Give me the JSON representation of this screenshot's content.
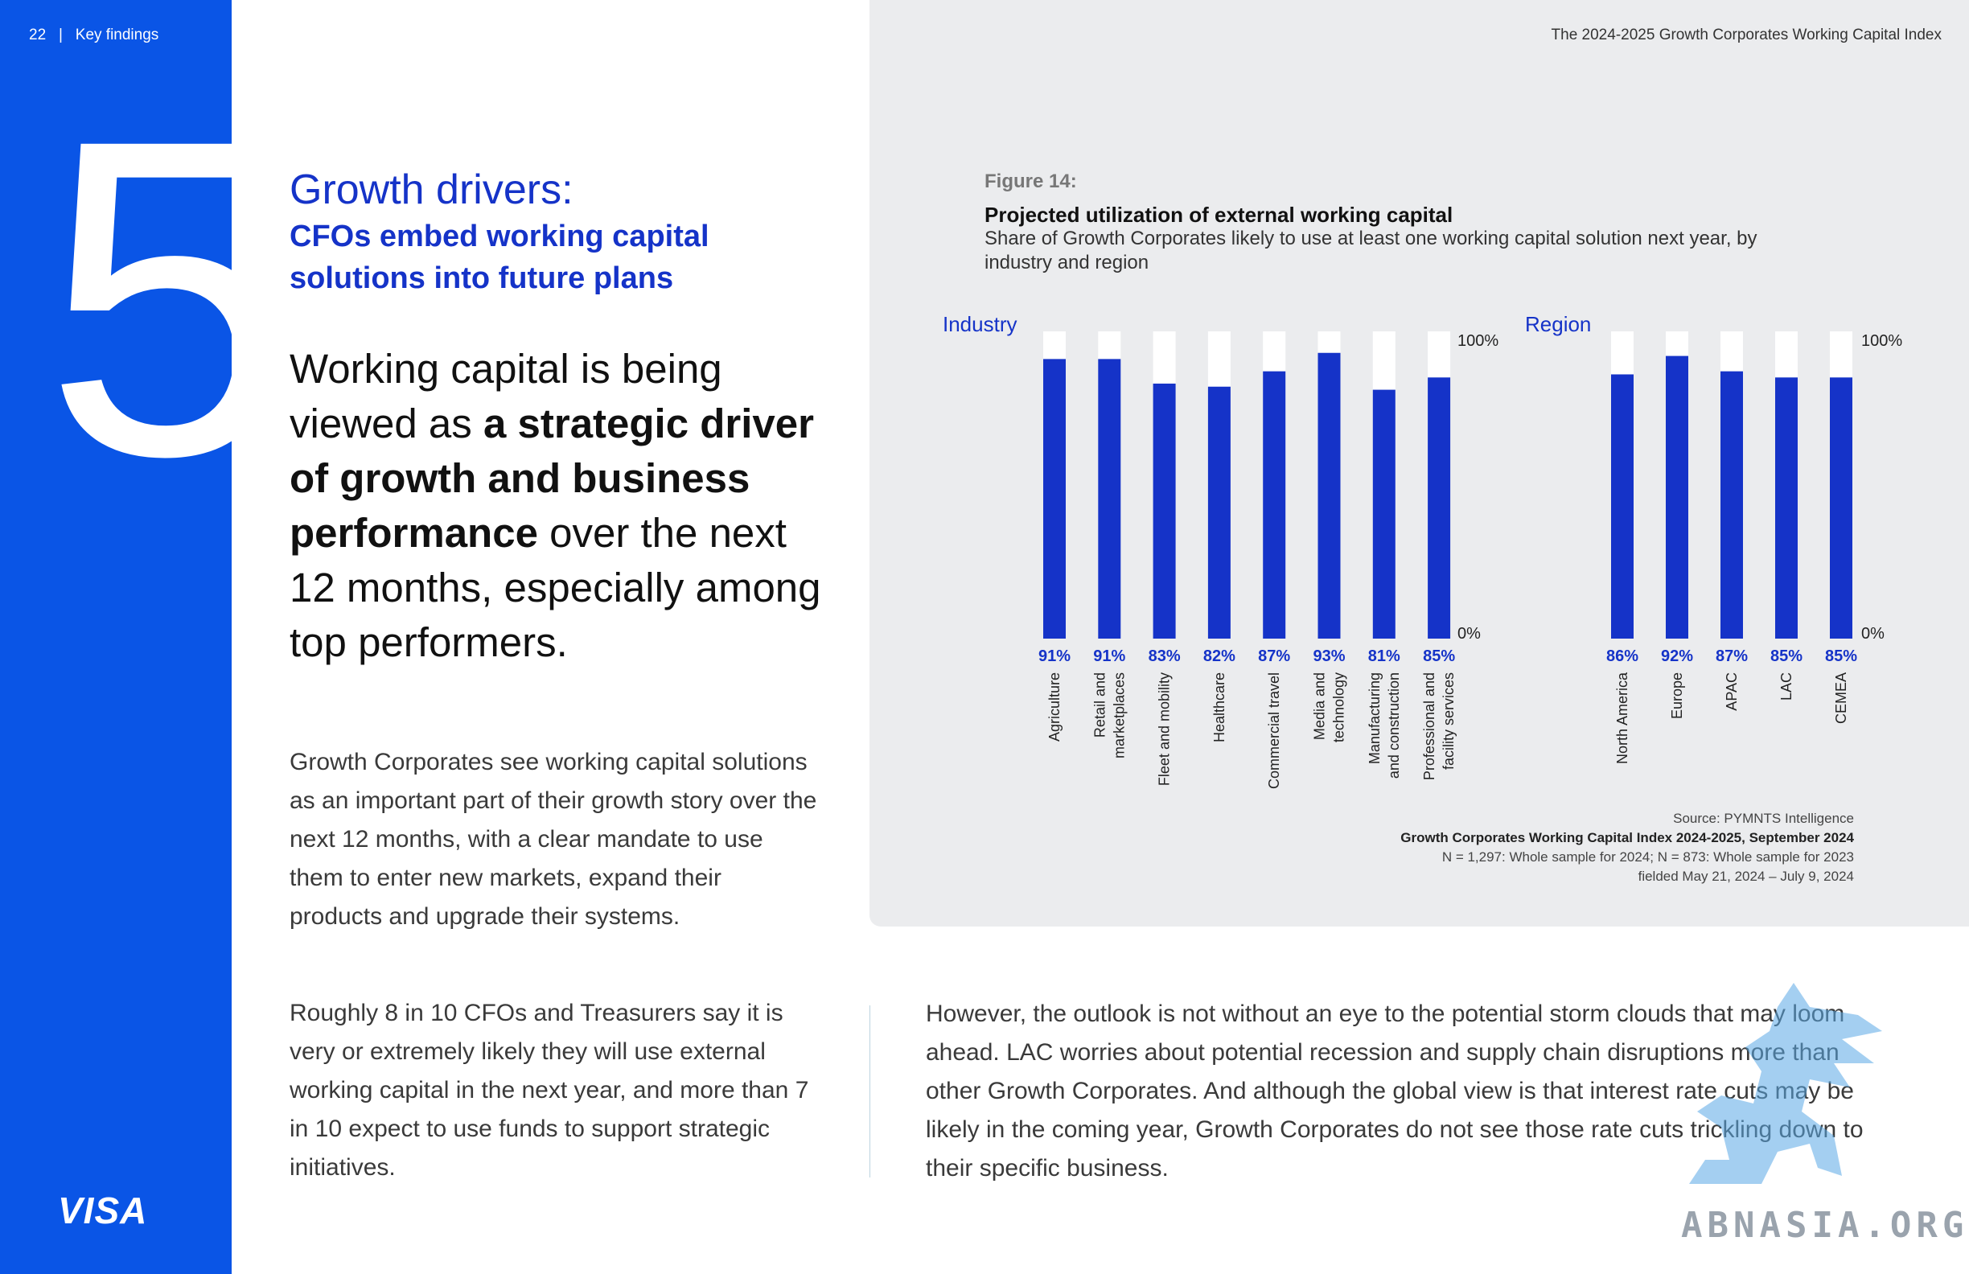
{
  "header": {
    "page_number": "22",
    "separator": "|",
    "section": "Key findings",
    "report_title": "The 2024-2025 Growth Corporates Working Capital Index"
  },
  "sidebar": {
    "big_number": "5",
    "logo": "VISA"
  },
  "finding": {
    "title_line1": "Growth drivers:",
    "title_line2": "CFOs embed working capital solutions into future plans",
    "lead_part1": "Working capital is being viewed as ",
    "lead_bold": "a strategic driver of growth and business performance",
    "lead_part2": " over the next 12 months, especially among top performers."
  },
  "body": {
    "para1": "Growth Corporates see working capital solutions as an important part of their growth story over the next 12 months, with a clear mandate to use them to enter new markets, expand their products and upgrade their systems.",
    "para2": "Roughly 8 in 10 CFOs and Treasurers say it is very or extremely likely they will use external working capital in the next year, and more than 7 in 10 expect to use funds to support strategic initiatives.",
    "para3": "However, the outlook is not without an eye to the potential storm clouds that may loom ahead. LAC worries about potential recession and supply chain disruptions more than other Growth Corporates. And although the global view is that interest rate cuts may be likely in the coming year, Growth Corporates do not see those rate cuts trickling down to their specific business."
  },
  "figure": {
    "label": "Figure 14:",
    "title": "Projected utilization of external working capital",
    "subtitle": "Share of Growth Corporates likely to use at least one working capital solution next year, by industry and region"
  },
  "chart_data": [
    {
      "type": "bar",
      "title": "Industry",
      "categories": [
        "Agriculture",
        "Retail and marketplaces",
        "Fleet and mobility",
        "Healthcare",
        "Commercial travel",
        "Media and technology",
        "Manufacturing and construction",
        "Professional and facility services"
      ],
      "category_lines": [
        [
          "Agriculture"
        ],
        [
          "Retail and",
          "marketplaces"
        ],
        [
          "Fleet and mobility"
        ],
        [
          "Healthcare"
        ],
        [
          "Commercial travel"
        ],
        [
          "Media and",
          "technology"
        ],
        [
          "Manufacturing",
          "and construction"
        ],
        [
          "Professional and",
          "facility services"
        ]
      ],
      "values": [
        91,
        91,
        83,
        82,
        87,
        93,
        81,
        85
      ],
      "data_labels": [
        "91%",
        "91%",
        "83%",
        "82%",
        "87%",
        "93%",
        "81%",
        "85%"
      ],
      "ylim": [
        0,
        100
      ],
      "y_ticks": [
        "0%",
        "100%"
      ]
    },
    {
      "type": "bar",
      "title": "Region",
      "categories": [
        "North America",
        "Europe",
        "APAC",
        "LAC",
        "CEMEA"
      ],
      "category_lines": [
        [
          "North America"
        ],
        [
          "Europe"
        ],
        [
          "APAC"
        ],
        [
          "LAC"
        ],
        [
          "CEMEA"
        ]
      ],
      "values": [
        86,
        92,
        87,
        85,
        85
      ],
      "data_labels": [
        "86%",
        "92%",
        "87%",
        "85%",
        "85%"
      ],
      "ylim": [
        0,
        100
      ],
      "y_ticks": [
        "0%",
        "100%"
      ]
    }
  ],
  "colors": {
    "bar_fill": "#1533c8",
    "bar_remainder": "#ffffff",
    "panel": "#ebecee",
    "sidebar": "#0a55e6"
  },
  "source": {
    "line1": "Source: PYMNTS Intelligence",
    "line2": "Growth Corporates Working Capital Index 2024-2025, September 2024",
    "line3": "N = 1,297: Whole sample for 2024; N = 873: Whole sample for 2023",
    "line4": "fielded May 21, 2024 – July 9, 2024"
  },
  "watermark": {
    "text": "ABNASIA.ORG"
  }
}
